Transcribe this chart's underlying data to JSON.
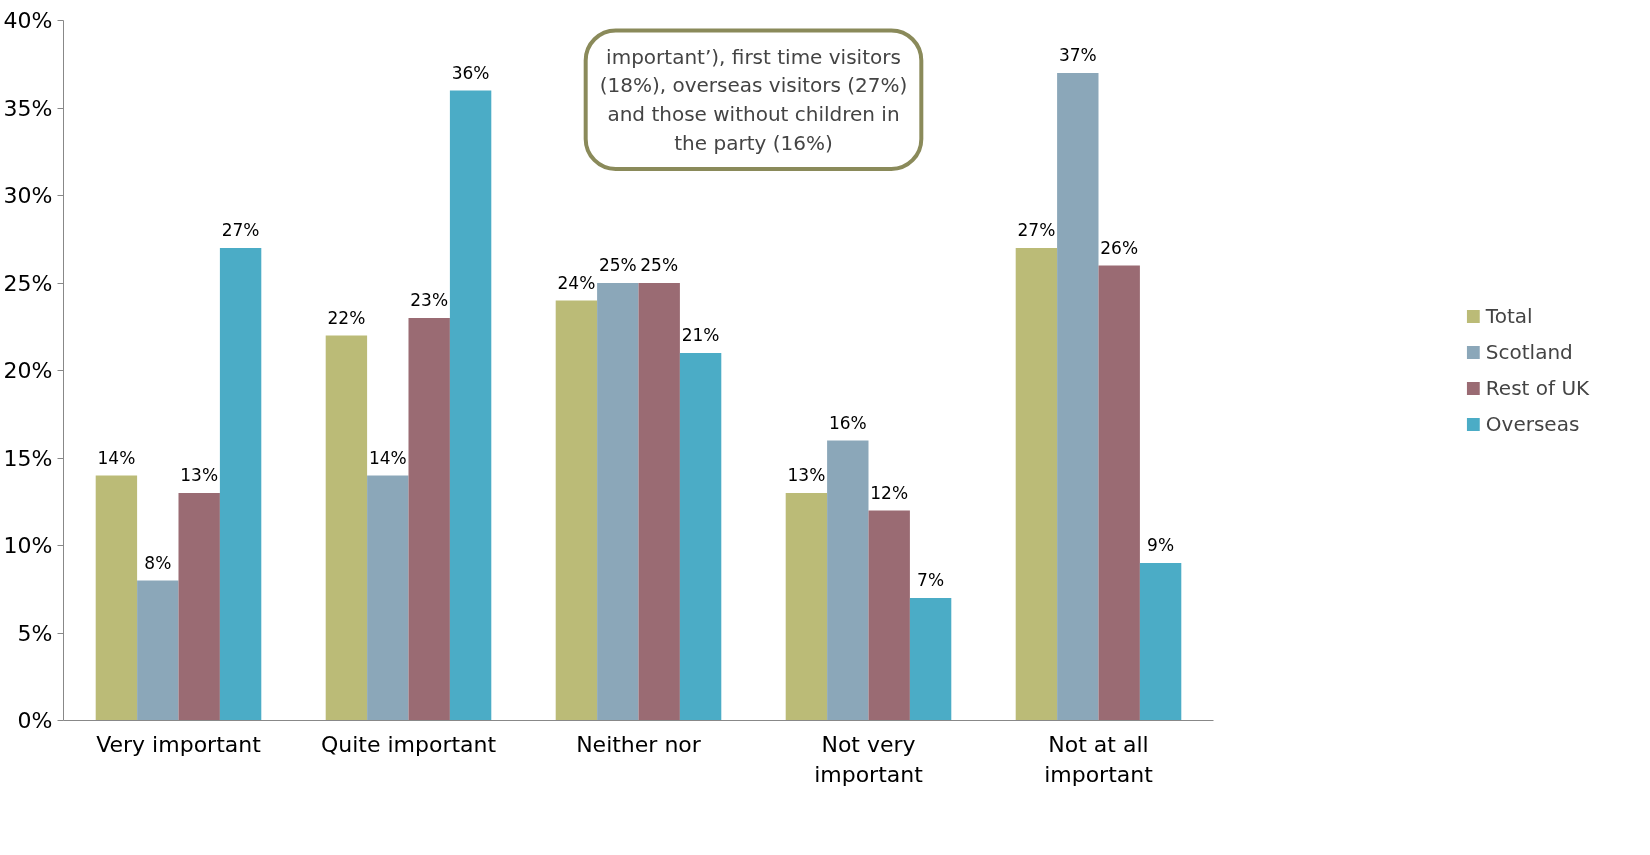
{
  "chart_data": {
    "type": "bar",
    "categories": [
      "Very important",
      "Quite important",
      "Neither nor",
      "Not very important",
      "Not at all important"
    ],
    "series": [
      {
        "name": "Total",
        "color": "#bbbb77",
        "values": [
          14,
          22,
          24,
          13,
          27
        ],
        "value_labels": [
          "14%",
          "22%",
          "24%",
          "13%",
          "27%"
        ]
      },
      {
        "name": "Scotland",
        "color": "#8ba7b9",
        "values": [
          8,
          14,
          25,
          16,
          37
        ],
        "value_labels": [
          "8%",
          "14%",
          "25%",
          "16%",
          "37%"
        ]
      },
      {
        "name": "Rest of UK",
        "color": "#9a6b73",
        "values": [
          13,
          23,
          25,
          12,
          26
        ],
        "value_labels": [
          "13%",
          "23%",
          "25%",
          "12%",
          "26%"
        ]
      },
      {
        "name": "Overseas",
        "color": "#4bacc6",
        "values": [
          27,
          36,
          21,
          7,
          9
        ],
        "value_labels": [
          "27%",
          "36%",
          "21%",
          "7%",
          "9%"
        ]
      }
    ],
    "ylim": [
      0,
      40
    ],
    "yticks": [
      {
        "value": 0,
        "label": "0%"
      },
      {
        "value": 5,
        "label": "5%"
      },
      {
        "value": 10,
        "label": "10%"
      },
      {
        "value": 15,
        "label": "15%"
      },
      {
        "value": 20,
        "label": "20%"
      },
      {
        "value": 25,
        "label": "25%"
      },
      {
        "value": 30,
        "label": "30%"
      },
      {
        "value": 35,
        "label": "35%"
      },
      {
        "value": 40,
        "label": "40%"
      }
    ],
    "grid": false,
    "legend": "right",
    "annotations": [
      "important’), first time visitors (18%), overseas visitors (27%) and those without children in the party (16%)"
    ]
  }
}
